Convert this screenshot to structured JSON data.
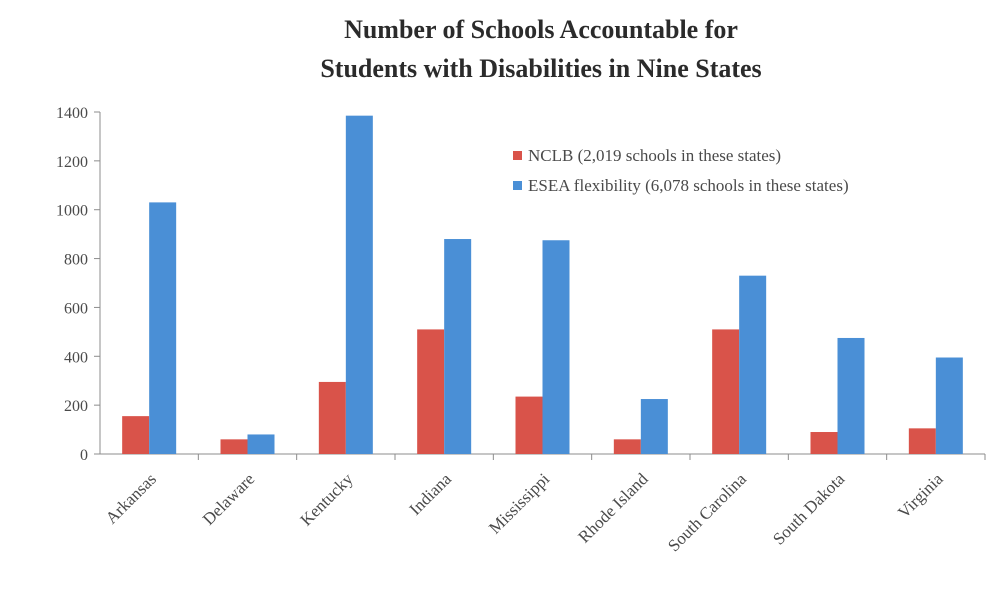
{
  "chart_data": {
    "type": "bar",
    "title_lines": [
      "Number of Schools Accountable for",
      "Students with Disabilities in Nine States"
    ],
    "xlabel": "",
    "ylabel": "",
    "ylim": [
      0,
      1400
    ],
    "yticks": [
      "0",
      "200",
      "400",
      "600",
      "800",
      "1000",
      "1200",
      "1400"
    ],
    "ytick_values": [
      0,
      200,
      400,
      600,
      800,
      1000,
      1200,
      1400
    ],
    "grid": false,
    "legend_position": "top-right",
    "categories": [
      "Arkansas",
      "Delaware",
      "Kentucky",
      "Indiana",
      "Mississippi",
      "Rhode Island",
      "South Carolina",
      "South Dakota",
      "Virginia"
    ],
    "series": [
      {
        "name": "NCLB (2,019 schools in these states)",
        "color": "#d9534a",
        "values": [
          155,
          60,
          295,
          510,
          235,
          60,
          510,
          90,
          105
        ]
      },
      {
        "name": "ESEA flexibility (6,078 schools in these states)",
        "color": "#4a8fd6",
        "values": [
          1030,
          80,
          1385,
          880,
          875,
          225,
          730,
          475,
          395
        ]
      }
    ]
  }
}
